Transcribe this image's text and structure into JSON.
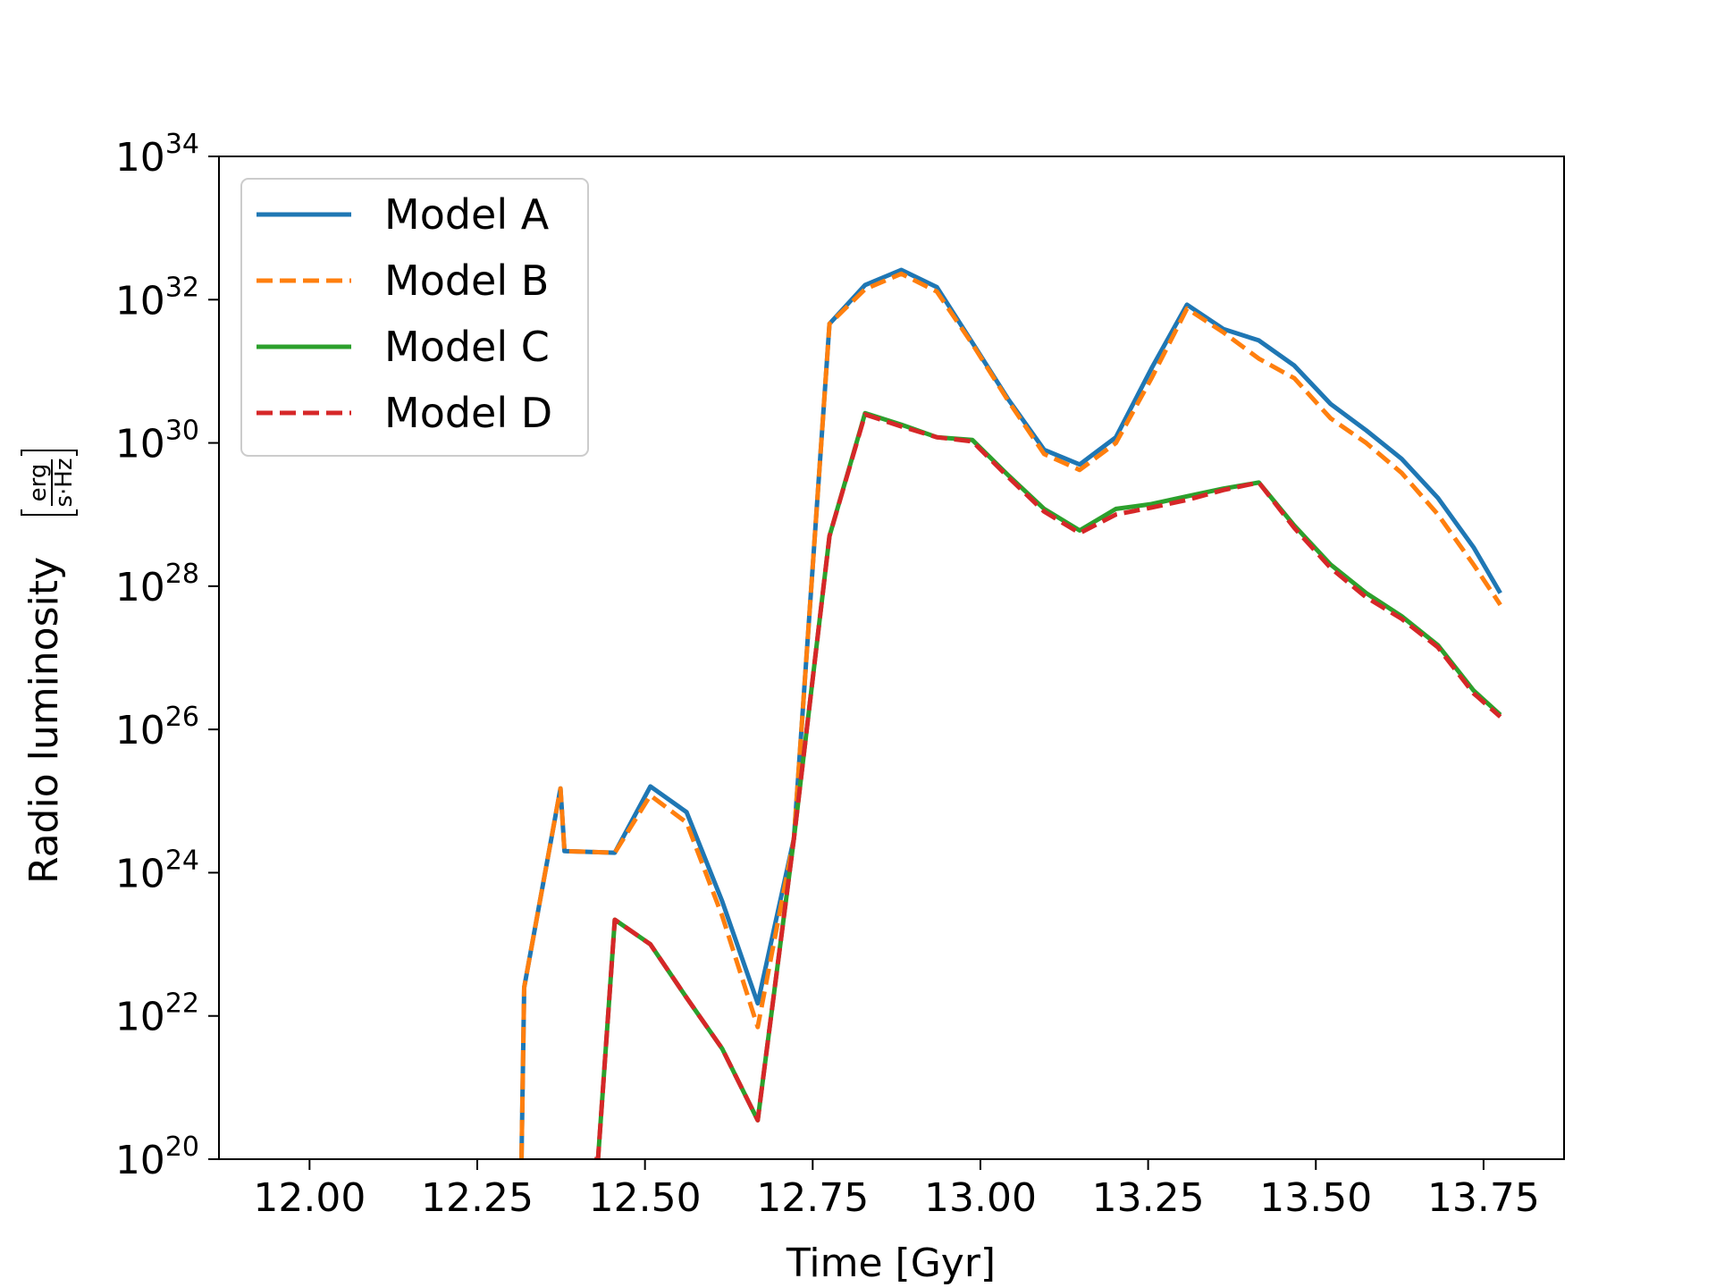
{
  "chart_data": {
    "type": "line",
    "title": "",
    "xlabel": "Time [Gyr]",
    "ylabel": "Radio luminosity",
    "ylabel_unit": {
      "numerator": "erg",
      "denominator": "s·Hz"
    },
    "xlim": [
      11.865,
      13.87
    ],
    "ylim": [
      1e+20,
      1e+34
    ],
    "yscale": "log",
    "grid": false,
    "legend_position": "top-left",
    "x_ticks": [
      12.0,
      12.25,
      12.5,
      12.75,
      13.0,
      13.25,
      13.5,
      13.75
    ],
    "x_tick_labels": [
      "12.00",
      "12.25",
      "12.50",
      "12.75",
      "13.00",
      "13.25",
      "13.50",
      "13.75"
    ],
    "y_ticks": [
      {
        "value": 1e+20,
        "base": "10",
        "exp": "20"
      },
      {
        "value": 1e+22,
        "base": "10",
        "exp": "22"
      },
      {
        "value": 1e+24,
        "base": "10",
        "exp": "24"
      },
      {
        "value": 1e+26,
        "base": "10",
        "exp": "26"
      },
      {
        "value": 1e+28,
        "base": "10",
        "exp": "28"
      },
      {
        "value": 1e+30,
        "base": "10",
        "exp": "30"
      },
      {
        "value": 1e+32,
        "base": "10",
        "exp": "32"
      },
      {
        "value": 1e+34,
        "base": "10",
        "exp": "34"
      }
    ],
    "series": [
      {
        "name": "Model A",
        "color": "#1f77b4",
        "dashed": false,
        "x": [
          12.316,
          12.32,
          12.374,
          12.38,
          12.455,
          12.508,
          12.562,
          12.615,
          12.668,
          12.722,
          12.775,
          12.828,
          12.882,
          12.935,
          12.988,
          13.042,
          13.095,
          13.148,
          13.202,
          13.255,
          13.308,
          13.362,
          13.415,
          13.468,
          13.522,
          13.575,
          13.628,
          13.682,
          13.735,
          13.775
        ],
        "y": [
          1e+20,
          2.5e+22,
          1.5e+25,
          2e+24,
          1.9e+24,
          1.6e+25,
          7e+24,
          4e+23,
          1.5e+22,
          3e+24,
          4.6e+31,
          1.6e+32,
          2.6e+32,
          1.5e+32,
          2.5e+31,
          4e+30,
          8e+29,
          5e+29,
          1.2e+30,
          1.1e+31,
          8.5e+31,
          3.9e+31,
          2.7e+31,
          1.2e+31,
          3.5e+30,
          1.5e+30,
          6e+29,
          1.7e+29,
          3.5e+28,
          8e+27
        ]
      },
      {
        "name": "Model B",
        "color": "#ff7f0e",
        "dashed": true,
        "x": [
          12.316,
          12.32,
          12.374,
          12.38,
          12.455,
          12.508,
          12.562,
          12.615,
          12.668,
          12.722,
          12.775,
          12.828,
          12.882,
          12.935,
          12.988,
          13.042,
          13.095,
          13.148,
          13.202,
          13.255,
          13.308,
          13.362,
          13.415,
          13.468,
          13.522,
          13.575,
          13.628,
          13.682,
          13.735,
          13.775
        ],
        "y": [
          1e+20,
          2.5e+22,
          1.5e+25,
          2e+24,
          1.9e+24,
          1.2e+25,
          5e+24,
          2.5e+23,
          7e+21,
          3e+24,
          4.6e+31,
          1.4e+32,
          2.3e+32,
          1.3e+32,
          2.4e+31,
          3.8e+30,
          7e+29,
          4.2e+29,
          1e+30,
          8e+30,
          7.5e+31,
          3.5e+31,
          1.5e+31,
          8e+30,
          2.2e+30,
          1e+30,
          3.8e+29,
          1e+29,
          2e+28,
          5.5e+27
        ]
      },
      {
        "name": "Model C",
        "color": "#2ca02c",
        "dashed": false,
        "x": [
          12.425,
          12.43,
          12.455,
          12.508,
          12.562,
          12.615,
          12.668,
          12.722,
          12.775,
          12.828,
          12.882,
          12.935,
          12.988,
          13.042,
          13.095,
          13.148,
          13.202,
          13.255,
          13.308,
          13.362,
          13.415,
          13.468,
          13.522,
          13.575,
          13.628,
          13.682,
          13.735,
          13.775
        ],
        "y": [
          1e+20,
          1e+20,
          2.2e+23,
          1e+23,
          1.8e+22,
          3.5e+21,
          3.5e+20,
          3e+24,
          5e+28,
          2.6e+30,
          1.8e+30,
          1.2e+30,
          1.1e+30,
          3.5e+29,
          1.2e+29,
          6e+28,
          1.2e+29,
          1.4e+29,
          1.8e+29,
          2.3e+29,
          2.8e+29,
          7e+28,
          2e+28,
          8e+27,
          3.8e+27,
          1.5e+27,
          3.5e+26,
          1.6e+26
        ]
      },
      {
        "name": "Model D",
        "color": "#d62728",
        "dashed": true,
        "x": [
          12.425,
          12.43,
          12.455,
          12.508,
          12.562,
          12.615,
          12.668,
          12.722,
          12.775,
          12.828,
          12.882,
          12.935,
          12.988,
          13.042,
          13.095,
          13.148,
          13.202,
          13.255,
          13.308,
          13.362,
          13.415,
          13.468,
          13.522,
          13.575,
          13.628,
          13.682,
          13.735,
          13.775
        ],
        "y": [
          1e+20,
          1e+20,
          2.2e+23,
          1e+23,
          1.8e+22,
          3.5e+21,
          3.5e+20,
          3e+24,
          5e+28,
          2.5e+30,
          1.7e+30,
          1.2e+30,
          1.05e+30,
          3.3e+29,
          1.1e+29,
          5.5e+28,
          1e+29,
          1.25e+29,
          1.6e+29,
          2.2e+29,
          2.8e+29,
          6.5e+28,
          1.8e+28,
          7e+27,
          3.5e+27,
          1.4e+27,
          3.2e+26,
          1.5e+26
        ]
      }
    ]
  }
}
